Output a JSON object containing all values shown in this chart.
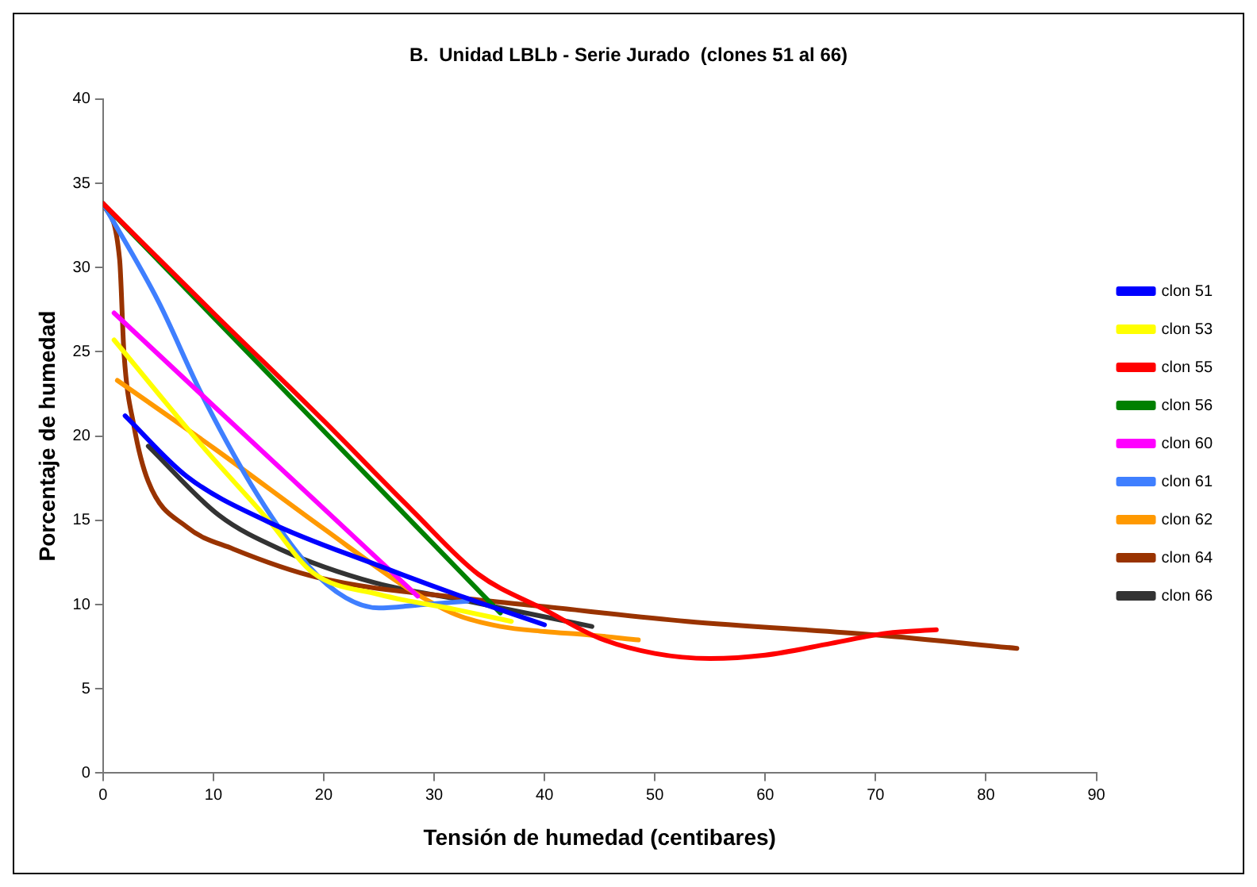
{
  "chart_data": {
    "type": "line",
    "title": "B.  Unidad LBLb - Serie Jurado  (clones 51 al 66)",
    "xlabel": "Tensión de humedad (centibares)",
    "ylabel": "Porcentaje de humedad",
    "xlim": [
      0,
      90
    ],
    "xticks": [
      0,
      10,
      20,
      30,
      40,
      50,
      60,
      70,
      80,
      90
    ],
    "ylim": [
      0,
      40
    ],
    "yticks": [
      0,
      5,
      10,
      15,
      20,
      25,
      30,
      35,
      40
    ],
    "grid": false,
    "legend": "right",
    "marker": "none",
    "line_style": "solid",
    "series": [
      {
        "name": "clon 51",
        "color": "#0000ff",
        "x": [
          2,
          7.6,
          15,
          25,
          32,
          40
        ],
        "values": [
          21.2,
          17.6,
          14.9,
          12.3,
          10.6,
          8.8
        ]
      },
      {
        "name": "clon 53",
        "color": "#ffff00",
        "x": [
          1,
          9,
          15,
          19,
          25,
          32,
          37
        ],
        "values": [
          25.7,
          19.4,
          15,
          11.9,
          10.6,
          9.7,
          9
        ]
      },
      {
        "name": "clon 55",
        "color": "#ff0000",
        "x": [
          0,
          10,
          20,
          28,
          34,
          40,
          45,
          50,
          55,
          60,
          66,
          71,
          75.5
        ],
        "values": [
          33.8,
          27.3,
          20.9,
          15.6,
          11.8,
          9.7,
          8,
          7.1,
          6.8,
          7,
          7.7,
          8.3,
          8.5
        ]
      },
      {
        "name": "clon 56",
        "color": "#008000",
        "x": [
          0,
          36
        ],
        "values": [
          33.8,
          9.5
        ]
      },
      {
        "name": "clon 60",
        "color": "#ff00ff",
        "x": [
          1,
          28.5
        ],
        "values": [
          27.3,
          10.5
        ]
      },
      {
        "name": "clon 61",
        "color": "#3f7fff",
        "x": [
          0,
          5,
          9,
          14,
          18.6,
          22,
          25,
          29,
          33
        ],
        "values": [
          33.8,
          28,
          22.4,
          16.5,
          12.3,
          10.4,
          9.8,
          10,
          10.2
        ]
      },
      {
        "name": "clon 62",
        "color": "#ff9900",
        "x": [
          1.3,
          10,
          20,
          28,
          32,
          36,
          40,
          44,
          48.5
        ],
        "values": [
          23.3,
          19.3,
          14.5,
          10.8,
          9.4,
          8.7,
          8.4,
          8.2,
          7.9
        ]
      },
      {
        "name": "clon 64",
        "color": "#993300",
        "x": [
          0,
          1.5,
          1.9,
          2.8,
          4.1,
          7.6,
          11.8,
          19.5,
          32.3,
          39.7,
          52.9,
          70,
          82.8
        ],
        "values": [
          33.8,
          30.5,
          24.9,
          20.6,
          17.3,
          14.6,
          13.3,
          11.6,
          10.4,
          9.9,
          9,
          8.2,
          7.4
        ]
      },
      {
        "name": "clon 66",
        "color": "#333333",
        "x": [
          4.1,
          10.5,
          16,
          24.6,
          32.3,
          44.3
        ],
        "values": [
          19.4,
          15.3,
          13.3,
          11.3,
          10.3,
          8.7
        ]
      }
    ]
  }
}
